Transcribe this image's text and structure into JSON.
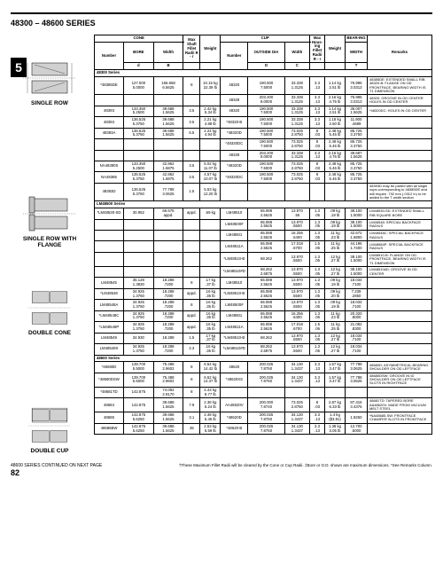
{
  "header": "48300 – 48600 SERIES",
  "section_num": "5",
  "labels": {
    "single_row": "SINGLE ROW",
    "single_row_flange": "SINGLE ROW WITH FLANGE",
    "double_cone": "DOUBLE CONE",
    "double_cup": "DOUBLE CUP"
  },
  "headers": {
    "cone": "CONE",
    "cup": "CUP",
    "bearing": "BEAR-ING",
    "remarks": "Remarks",
    "number": "Number",
    "bore": "BORE",
    "width": "Width",
    "max_radii": "Max Shaft Fillet Radii R - r",
    "weight": "Weight",
    "outside_dia": "OUTSIDE DIA",
    "cup_width": "Width",
    "max_hsg": "Max Hous-ing Fillet Radii R - r",
    "bearing_width": "WIDTH",
    "d": "d",
    "B": "B",
    "D": "D",
    "C": "C",
    "T": "T"
  },
  "section_titles": {
    "s48300": "48300 Series",
    "lm48500": "LM48500 Series",
    "s48600": "48600 Series"
  },
  "rows": [
    {
      "num": "*48385DE",
      "d1": "127.000",
      "d2": "5.0000",
      "b1": "166.668",
      "b2": "6.5625",
      "r": "8",
      "w1": "10.15 kg",
      "w2": "22.39 lb",
      "cnum": "48320",
      "od1": "190.500",
      "od2": "7.5000",
      "c1": "33.338",
      "c2": "1.3125",
      "hr1": "3.3",
      "hr2": ".13",
      "cw1": "1.14 kg",
      "cw2": "2.51 lb",
      "t1": "76.995",
      "t2": "3.0313",
      "rem": "48385DE: EXTENDED SMALL RIB  48320-B: FLANGE ON OD FRONTFACE, BEARING WIDTH IS T1 DIMENSION"
    },
    {
      "num": "",
      "d1": "",
      "d2": "",
      "b1": "",
      "b2": "",
      "r": "",
      "w1": "",
      "w2": "",
      "cnum": "48328",
      "od1": "203.200",
      "od2": "8.0000",
      "c1": "33.338",
      "c2": "1.3125",
      "hr1": "3.3",
      "hr2": ".13",
      "cw1": "2.16 kg",
      "cw2": "4.76 lb",
      "t1": "76.995",
      "t2": "3.0313",
      "rem": "48320: GROOVE IN OD CENTER HOLES IN OD CENTER"
    },
    {
      "num": "48393",
      "d1": "133.350",
      "d2": "5.2500",
      "b1": "39.688",
      "b2": "1.5625",
      "r": "3.5",
      "w1": "2.42 kg",
      "w2": "5.34 lb",
      "cnum": "48320",
      "od1": "190.500",
      "od2": "7.5000",
      "c1": "33.338",
      "c2": "1.3125",
      "hr1": "3.3",
      "hr2": ".13",
      "cw1": "1.14 kg",
      "cw2": "2.51 lb",
      "t1": "36.007",
      "t2": "1.5625",
      "rem": "*48320DC: HOLES IN OD CENTER"
    },
    {
      "num": "48393",
      "d1": "136.525",
      "d2": "5.3750",
      "b1": "39.688",
      "b2": "1.5625",
      "r": "3.5",
      "w1": "2.21 kg",
      "w2": "4.88 lb",
      "cnum": "*48320-B",
      "od1": "190.500",
      "od2": "7.5000",
      "c1": "33.338",
      "c2": "1.3125",
      "hr1": "3.3",
      "hr2": ".13",
      "cw1": "1.18 kg",
      "cw2": "2.60 lb",
      "t1": "11.900",
      "t2": ".4689",
      "rem": ""
    },
    {
      "num": "48393A",
      "d1": "136.525",
      "d2": "5.3750",
      "b1": "39.688",
      "b2": "1.5625",
      "r": "6.5",
      "w1": "2.24 kg",
      "w2": "4.94 lb",
      "cnum": "*48320D",
      "od1": "190.500",
      "od2": "7.5000",
      "c1": "73.025",
      "c2": "2.8750",
      "hr1": "8",
      "hr2": ".03",
      "cw1": "2.48 kg",
      "cw2": "5.46 lb",
      "t1": "85.725",
      "t2": "3.3750",
      "rem": ""
    },
    {
      "num": "",
      "d1": "",
      "d2": "",
      "b1": "",
      "b2": "",
      "r": "",
      "w1": "",
      "w2": "",
      "cnum": "*48320DC",
      "od1": "190.500",
      "od2": "7.5000",
      "c1": "73.025",
      "c2": "2.8750",
      "hr1": "8",
      "hr2": ".03",
      "cw1": "2.48 kg",
      "cw2": "5.46 lb",
      "t1": "85.725",
      "t2": "3.3750",
      "rem": ""
    },
    {
      "num": "",
      "d1": "",
      "d2": "",
      "b1": "",
      "b2": "",
      "r": "",
      "w1": "",
      "w2": "",
      "cnum": "48328",
      "od1": "203.200",
      "od2": "8.0000",
      "c1": "33.338",
      "c2": "1.3125",
      "hr1": "3.3",
      "hr2": ".13",
      "cw1": "2.16 kg",
      "cw2": "4.76 lb",
      "t1": "39.687",
      "t2": "1.5625",
      "rem": ""
    },
    {
      "num": "NA48390S",
      "d1": "133.350",
      "d2": "5.2500",
      "b1": "42.862",
      "b2": "1.6875",
      "r": "3.5",
      "w1": "5.02 kg",
      "w2": "11.07 lb",
      "cnum": "*48320D",
      "od1": "190.500",
      "od2": "7.5000",
      "c1": "73.025",
      "c2": "2.8750",
      "hr1": "8",
      "hr2": ".03",
      "cw1": "2.48 kg",
      "cw2": "5.46 lb",
      "t1": "85.725",
      "t2": "3.3750",
      "rem": ""
    },
    {
      "num": "NA48385",
      "d1": "136.525",
      "d2": "5.3750",
      "b1": "42.862",
      "b2": "1.6875",
      "r": "3.5",
      "w1": "4.57 kg",
      "w2": "10.07 lb",
      "cnum": "*48320DC",
      "od1": "190.500",
      "od2": "7.5000",
      "c1": "73.025",
      "c2": "2.8750",
      "hr1": "8",
      "hr2": ".03",
      "cw1": "2.48 kg",
      "cw2": "5.46 lb",
      "t1": "85.725",
      "t2": "3.3750",
      "rem": ""
    },
    {
      "num": "48393D",
      "d1": "136.525",
      "d2": "5.3750",
      "b1": "77.788",
      "b2": "3.0625",
      "r": "1.5",
      "w1": "5.53 kg",
      "w2": "12.20 lb",
      "cnum": "",
      "od1": "",
      "od2": "",
      "c1": "",
      "c2": "",
      "hr1": "",
      "hr2": "",
      "cw1": "",
      "cw2": "",
      "t1": "",
      "t2": "",
      "rem": "48393D may be paired with all single cups corresponding to 48385DE and will require .792 mm (.0312 in) to be added to the T width section"
    }
  ],
  "lm_rows": [
    {
      "num": "*LM48530-SD",
      "d1": "30.952",
      "d2": "",
      "b1": "66.675",
      "b2": "appd.",
      "r": "appd.",
      "w1": ".69 kg",
      "w2": "",
      "cnum": "LM48510",
      "od1": "65.088",
      "od2": "2.5625",
      "c1": "13.970",
      "c2": ".55",
      "hr1": "1.3",
      "hr2": ".05",
      "cw1": ".09 kg",
      "cw2": ".19 lb",
      "t1": "38.100",
      "t2": "1.5000",
      "rem": "LM48530-SD: EXTENDED SMALL RIB SQUARE BORE"
    },
    {
      "num": "",
      "d1": "",
      "d2": "",
      "b1": "",
      "b2": "",
      "r": "",
      "w1": "",
      "w2": "",
      "cnum": "LM48500#",
      "od1": "65.088",
      "od2": "2.5625",
      "c1": "13.970",
      "c2": ".5500",
      "hr1": "1.3",
      "hr2": ".05",
      "cw1": ".09 kg",
      "cw2": ".19 lb",
      "t1": "38.100",
      "t2": "1.5000",
      "rem": "LM48548: SPECIAL BACKFACE RADIUS"
    },
    {
      "num": "",
      "d1": "",
      "d2": "",
      "b1": "",
      "b2": "",
      "r": "",
      "w1": "",
      "w2": "",
      "cnum": "LM48501",
      "od1": "65.088",
      "od2": "2.5625",
      "c1": "16.256",
      "c2": ".6400",
      "hr1": "1.3",
      "hr2": ".05",
      "cw1": ".11 kg",
      "cw2": ".23 lb",
      "t1": "42.672",
      "t2": "1.6800",
      "rem": "LM48548C: SPECIAL BACKFACE RADIUS"
    },
    {
      "num": "",
      "d1": "",
      "d2": "",
      "b1": "",
      "b2": "",
      "r": "",
      "w1": "",
      "w2": "",
      "cnum": "LM48511A",
      "od1": "65.088",
      "od2": "2.5625",
      "c1": "17.018",
      "c2": ".6700",
      "hr1": "1.5",
      "hr2": ".06",
      "cw1": ".11 kg",
      "cw2": ".25 lb",
      "t1": "44.196",
      "t2": "1.7400",
      "rem": "LM48584P: SPECIAL BACKFACE RADIUS"
    },
    {
      "num": "",
      "d1": "",
      "d2": "",
      "b1": "",
      "b2": "",
      "r": "",
      "w1": "",
      "w2": "",
      "cnum": "*LM48510-B",
      "od1": "68.262",
      "od2": "",
      "c1": "13.970",
      "c2": ".5500",
      "hr1": "1.3",
      "hr2": ".05",
      "cw1": ".12 kg",
      "cw2": ".27 lb",
      "t1": "38.100",
      "t2": "1.5000",
      "rem": "LM48510-B: FLANGE ON OD FRONTFACE, BEARING WIDTH IS T1 DIMENSION"
    },
    {
      "num": "",
      "d1": "",
      "d2": "",
      "b1": "",
      "b2": "",
      "r": "",
      "w1": "",
      "w2": "",
      "cnum": "*LM48510#D",
      "od1": "68.262",
      "od2": "2.6875",
      "c1": "13.970",
      "c2": ".5500",
      "hr1": "1.3",
      "hr2": ".05",
      "cw1": ".12 kg",
      "cw2": ".27 lb",
      "t1": "38.100",
      "t2": "1.5000",
      "rem": "LM48510#D: GROOVE IN OD CENTER"
    },
    {
      "num": "LM48545",
      "d1": "35.128",
      "d2": "1.3830",
      "b1": "18.288",
      "b2": ".7200",
      "r": "8",
      "w1": ".17 kg",
      "w2": ".37 lb",
      "cnum": "LM48510",
      "od1": "65.088",
      "od2": "2.5625",
      "c1": "13.970",
      "c2": ".5500",
      "hr1": "1.3",
      "hr2": ".05",
      "cw1": ".09 kg",
      "cw2": ".19 lb",
      "t1": "18.034",
      "t2": ".7100",
      "rem": ""
    },
    {
      "num": "*LM48548",
      "d1": "34.925",
      "d2": "1.3750",
      "b1": "18.288",
      "b2": ".7200",
      "r": "appd.",
      "w1": ".16 kg",
      "w2": ".35 lb",
      "cnum": "*LM48510-B",
      "od1": "65.088",
      "od2": "2.5625",
      "c1": "13.970",
      "c2": ".5500",
      "hr1": "1.3",
      "hr2": ".05",
      "cw1": ".09 kg",
      "cw2": ".20 lb",
      "t1": "7.239",
      "t2": ".2850",
      "rem": ""
    },
    {
      "num": "LM48548A",
      "d1": "34.925",
      "d2": "1.3750",
      "b1": "18.288",
      "b2": ".7200",
      "r": "8",
      "w1": ".16 kg",
      "w2": ".35 lb",
      "cnum": "LM48500#",
      "od1": "65.088",
      "od2": "2.5625",
      "c1": "13.970",
      "c2": ".5500",
      "hr1": "1.3",
      "hr2": ".05",
      "cw1": ".09 kg",
      "cw2": ".19 lb",
      "t1": "18.034",
      "t2": ".7100",
      "rem": ""
    },
    {
      "num": "*LM48548C",
      "d1": "34.925",
      "d2": "1.3750",
      "b1": "18.288",
      "b2": ".7200",
      "r": "appd.",
      "w1": ".16 kg",
      "w2": ".35 lb",
      "cnum": "LM48501",
      "od1": "65.088",
      "od2": "2.5625",
      "c1": "16.256",
      "c2": ".6400",
      "hr1": "1.3",
      "hr2": ".05",
      "cw1": ".11 kg",
      "cw2": ".23 lb",
      "t1": "20.320",
      "t2": ".8000",
      "rem": ""
    },
    {
      "num": "*LM48548P",
      "d1": "34.925",
      "d2": "1.3750",
      "b1": "18.288",
      "b2": ".7200",
      "r": "appd.",
      "w1": ".16 kg",
      "w2": ".35 lb",
      "cnum": "LM48511A",
      "od1": "65.088",
      "od2": "2.5625",
      "c1": "17.018",
      "c2": ".6700",
      "hr1": "1.5",
      "hr2": ".06",
      "cw1": ".11 kg",
      "cw2": ".25 lb",
      "t1": "21.082",
      "t2": ".8300",
      "rem": ""
    },
    {
      "num": "LM48549",
      "d1": "34.930",
      "d2": "",
      "b1": "18.288",
      "b2": "",
      "r": "1.5",
      "w1": ".17 kg",
      "w2": ".37 lb",
      "cnum": "*LM48510-B",
      "od1": "68.262",
      "od2": "",
      "c1": "13.970",
      "c2": ".5500",
      "hr1": "1.3",
      "hr2": ".05",
      "cw1": ".12 kg",
      "cw2": ".27 lb",
      "t1": "18.034",
      "t2": ".7100",
      "rem": ""
    },
    {
      "num": "LM48549X",
      "d1": "34.925",
      "d2": "1.3750",
      "b1": "18.288",
      "b2": ".7200",
      "r": "2.3",
      "w1": ".16 kg",
      "w2": ".35 lb",
      "cnum": "*LM48510#D",
      "od1": "68.262",
      "od2": "2.6875",
      "c1": "13.970",
      "c2": ".5500",
      "hr1": "1.3",
      "hr2": ".05",
      "cw1": ".12 kg",
      "cw2": ".27 lb",
      "t1": "18.034",
      "t2": ".7100",
      "rem": ""
    }
  ],
  "s486_rows": [
    {
      "num": "*48680D",
      "d1": "139.700",
      "d2": "5.5000",
      "b1": "75.488",
      "b2": "2.9602",
      "r": "8",
      "w1": "6.54 kg",
      "w2": "14.42 lb",
      "cnum": "48620",
      "od1": "200.025",
      "od2": "7.8750",
      "c1": "34.130",
      "c2": "1.3437",
      "hr1": "3.3",
      "hr2": ".13",
      "cw1": "1.57 kg",
      "cw2": "3.47 lb",
      "t1": "77.788",
      "t2": "3.0625",
      "rem": "48680D: ASYMMETRICAL BEARING SHOULDER ON OD LEFTFACE"
    },
    {
      "num": "*48680DSW",
      "d1": "139.700",
      "d2": "5.5000",
      "b1": "75.488",
      "b2": "2.9602",
      "r": "8",
      "w1": "6.52 kg",
      "w2": "14.37 lb",
      "cnum": "*48620XS",
      "od1": "200.025",
      "od2": "7.8750",
      "c1": "34.130",
      "c2": "1.3437",
      "hr1": "3.3",
      "hr2": ".13",
      "cw1": "1.57 kg",
      "cw2": "3.47 lb",
      "t1": "77.788",
      "t2": "3.0625",
      "rem": "48680DSW: GROOVE IN ID SHOULDER ON OD LEFTFACE SLOTS IN RIGHTFACE"
    },
    {
      "num": "*48681TD",
      "d1": "142.875",
      "d2": "",
      "b1": "74.092",
      "b2": "2.9170",
      "r": "8",
      "w1": "4.43 kg",
      "w2": "9.77 lb",
      "cnum": "",
      "od1": "",
      "od2": "",
      "c1": "",
      "c2": "",
      "hr1": "",
      "hr2": "",
      "cw1": "",
      "cw2": "",
      "t1": "",
      "t2": "",
      "rem": ""
    },
    {
      "num": "48684",
      "d1": "142.875",
      "d2": "",
      "b1": "39.688",
      "b2": "1.5625",
      "r": "7.9",
      "w1": "2.38 kg",
      "w2": "5.24 lb",
      "cnum": "AA48620V",
      "od1": "200.000",
      "od2": "7.8740",
      "c1": "73.025",
      "c2": "2.8750",
      "hr1": "8",
      "hr2": ".03",
      "cw1": "2.87 kg",
      "cw2": "6.33 lb",
      "t1": "87.315",
      "t2": "3.4376",
      "rem": "48681TD: TAPERED BORE  AA48620V: MADE FROM VACUUM MELT STEEL"
    },
    {
      "num": "48685",
      "d1": "142.875",
      "d2": "5.6250",
      "b1": "39.688",
      "b2": "1.5625",
      "r": "3.1",
      "w1": "2.48 kg",
      "w2": "5.45 lb",
      "cnum": "*48620D",
      "od1": "200.025",
      "od2": "7.8750",
      "c1": "34.130",
      "c2": "1.3437",
      "hr1": "3.3",
      "hr2": ".13",
      "cw1": "1.4 kg",
      "cw2": "($3.81)",
      "t1": "1.8250",
      "t2": "",
      "rem": "*NA48685-SW: FRONTFACE CHAMFER SLOTS IN FRONTFACE"
    },
    {
      "num": "48686BW",
      "d1": "142.875",
      "d2": "5.6250",
      "b1": "39.688",
      "b2": "1.5625",
      "r": "35",
      "w1": "2.53 kg",
      "w2": "5.59 lb",
      "cnum": "*48620-B",
      "od1": "200.025",
      "od2": "7.8750",
      "c1": "34.130",
      "c2": "1.3437",
      "hr1": "3.3",
      "hr2": ".13",
      "cw1": "1.38 kg",
      "cw2": "3.05 lb",
      "t1": "12.700",
      "t2": ".5000",
      "rem": ""
    }
  ],
  "footer": {
    "continue": "48600 SERIES CONTINUED ON NEXT PAGE",
    "note": "†These Maximum Fillet Radii will be cleared by the Cone or Cup Radii.  ‡Bore or O.D. shown are maximum dimensions.  *See Remarks Column.",
    "page": "82"
  }
}
